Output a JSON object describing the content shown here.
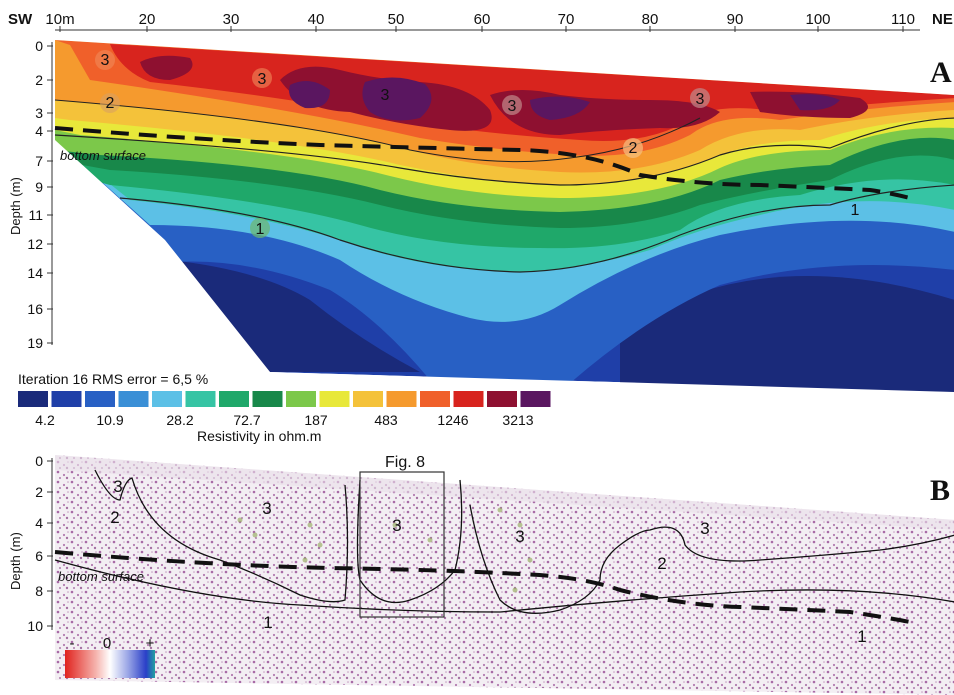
{
  "top_axis": {
    "left_label": "SW",
    "right_label": "NE",
    "ticks": [
      "10m",
      "20",
      "30",
      "40",
      "50",
      "60",
      "70",
      "80",
      "90",
      "100",
      "110"
    ]
  },
  "panel_a": {
    "label": "A",
    "depth_axis_label": "Depth (m)",
    "depth_ticks": [
      "0",
      "2",
      "3",
      "4",
      "7",
      "9",
      "11",
      "12",
      "14",
      "16",
      "19"
    ],
    "unit_labels": [
      "3",
      "3",
      "3",
      "3",
      "3",
      "2",
      "2",
      "1",
      "1"
    ],
    "bottom_surface_label": "bottom surface",
    "iteration_text": "Iteration 16 RMS error = 6,5 %",
    "legend_values": [
      "4.2",
      "10.9",
      "28.2",
      "72.7",
      "187",
      "483",
      "1246",
      "3213"
    ],
    "legend_title": "Resistivity in ohm.m",
    "legend_colors": [
      "#1a2a7a",
      "#1f3fa8",
      "#2860c4",
      "#3a8fd6",
      "#5cc0e6",
      "#36c4a4",
      "#1fa86a",
      "#18884a",
      "#7cc84a",
      "#e8e83a",
      "#f4c23a",
      "#f59a2e",
      "#f0602a",
      "#d8241e",
      "#8e1030",
      "#5a1660"
    ]
  },
  "panel_b": {
    "label": "B",
    "depth_axis_label": "Depth (m)",
    "depth_ticks": [
      "0",
      "2",
      "4",
      "6",
      "8",
      "10"
    ],
    "unit_labels": [
      "3",
      "3",
      "3",
      "3",
      "3",
      "2",
      "2",
      "1",
      "1"
    ],
    "bottom_surface_label": "bottom surface",
    "figure_ref": "Fig. 8",
    "colorbar_labels": [
      "-",
      "0",
      "+"
    ]
  }
}
